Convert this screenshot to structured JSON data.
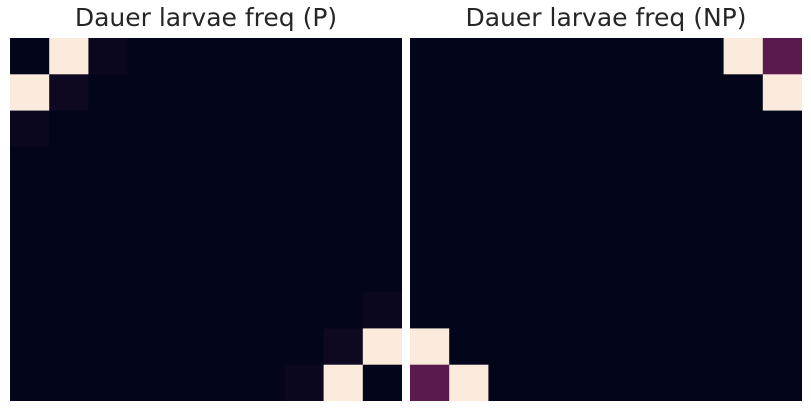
{
  "chart_data": [
    {
      "type": "heatmap",
      "title": "Dauer larvae freq (P)",
      "xlabel": "",
      "ylabel": "",
      "colorscale": {
        "low": "#03051a",
        "mid": "#5a1a4e",
        "high": "#faebdd"
      },
      "grid": false,
      "rows": 10,
      "cols": 10,
      "values": [
        [
          0.0,
          1.0,
          0.03,
          0.0,
          0.0,
          0.0,
          0.0,
          0.0,
          0.0,
          0.0
        ],
        [
          1.0,
          0.05,
          0.0,
          0.0,
          0.0,
          0.0,
          0.0,
          0.0,
          0.0,
          0.0
        ],
        [
          0.03,
          0.0,
          0.0,
          0.0,
          0.0,
          0.0,
          0.0,
          0.0,
          0.0,
          0.0
        ],
        [
          0.0,
          0.0,
          0.0,
          0.0,
          0.0,
          0.0,
          0.0,
          0.0,
          0.0,
          0.0
        ],
        [
          0.0,
          0.0,
          0.0,
          0.0,
          0.0,
          0.0,
          0.0,
          0.0,
          0.0,
          0.0
        ],
        [
          0.0,
          0.0,
          0.0,
          0.0,
          0.0,
          0.0,
          0.0,
          0.0,
          0.0,
          0.0
        ],
        [
          0.0,
          0.0,
          0.0,
          0.0,
          0.0,
          0.0,
          0.0,
          0.0,
          0.0,
          0.0
        ],
        [
          0.0,
          0.0,
          0.0,
          0.0,
          0.0,
          0.0,
          0.0,
          0.0,
          0.0,
          0.03
        ],
        [
          0.0,
          0.0,
          0.0,
          0.0,
          0.0,
          0.0,
          0.0,
          0.0,
          0.05,
          1.0
        ],
        [
          0.0,
          0.0,
          0.0,
          0.0,
          0.0,
          0.0,
          0.0,
          0.03,
          1.0,
          0.0
        ]
      ]
    },
    {
      "type": "heatmap",
      "title": "Dauer larvae freq (NP)",
      "xlabel": "",
      "ylabel": "",
      "colorscale": {
        "low": "#03051a",
        "mid": "#5a1a4e",
        "high": "#faebdd"
      },
      "grid": false,
      "rows": 10,
      "cols": 10,
      "values": [
        [
          0.0,
          0.0,
          0.0,
          0.0,
          0.0,
          0.0,
          0.0,
          0.0,
          1.0,
          0.4
        ],
        [
          0.0,
          0.0,
          0.0,
          0.0,
          0.0,
          0.0,
          0.0,
          0.0,
          0.0,
          1.0
        ],
        [
          0.0,
          0.0,
          0.0,
          0.0,
          0.0,
          0.0,
          0.0,
          0.0,
          0.0,
          0.0
        ],
        [
          0.0,
          0.0,
          0.0,
          0.0,
          0.0,
          0.0,
          0.0,
          0.0,
          0.0,
          0.0
        ],
        [
          0.0,
          0.0,
          0.0,
          0.0,
          0.0,
          0.0,
          0.0,
          0.0,
          0.0,
          0.0
        ],
        [
          0.0,
          0.0,
          0.0,
          0.0,
          0.0,
          0.0,
          0.0,
          0.0,
          0.0,
          0.0
        ],
        [
          0.0,
          0.0,
          0.0,
          0.0,
          0.0,
          0.0,
          0.0,
          0.0,
          0.0,
          0.0
        ],
        [
          0.0,
          0.0,
          0.0,
          0.0,
          0.0,
          0.0,
          0.0,
          0.0,
          0.0,
          0.0
        ],
        [
          1.0,
          0.0,
          0.0,
          0.0,
          0.0,
          0.0,
          0.0,
          0.0,
          0.0,
          0.0
        ],
        [
          0.4,
          1.0,
          0.0,
          0.0,
          0.0,
          0.0,
          0.0,
          0.0,
          0.0,
          0.0
        ]
      ]
    }
  ]
}
